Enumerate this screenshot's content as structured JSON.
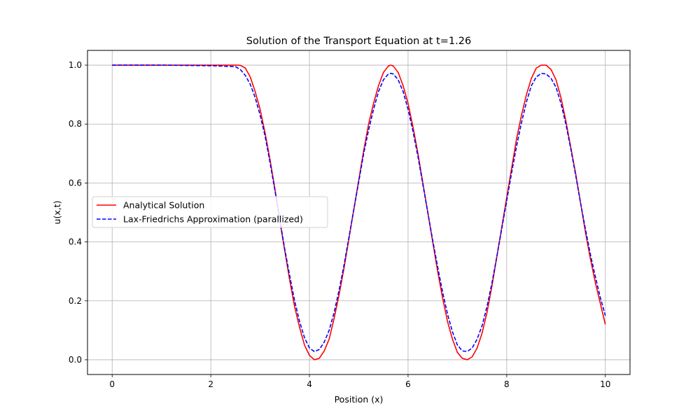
{
  "chart_data": {
    "type": "line",
    "title": "Solution of the Transport Equation at t=1.26",
    "xlabel": "Position (x)",
    "ylabel": "u(x,t)",
    "xlim": [
      -0.5,
      10.5
    ],
    "ylim": [
      -0.05,
      1.05
    ],
    "xticks": [
      0,
      2,
      4,
      6,
      8,
      10
    ],
    "yticks": [
      0.0,
      0.2,
      0.4,
      0.6,
      0.8,
      1.0
    ],
    "xtick_labels": [
      "0",
      "2",
      "4",
      "6",
      "8",
      "10"
    ],
    "ytick_labels": [
      "0.0",
      "0.2",
      "0.4",
      "0.6",
      "0.8",
      "1.0"
    ],
    "grid": true,
    "legend_position": "center-left",
    "x": [
      0,
      0.5,
      1,
      1.5,
      2,
      2.5,
      2.55,
      2.6,
      2.7,
      2.8,
      2.9,
      3.0,
      3.1,
      3.2,
      3.3,
      3.4,
      3.5,
      3.6,
      3.7,
      3.8,
      3.9,
      4.0,
      4.1,
      4.2,
      4.3,
      4.4,
      4.5,
      4.6,
      4.7,
      4.8,
      4.9,
      5.0,
      5.1,
      5.2,
      5.3,
      5.4,
      5.5,
      5.6,
      5.65,
      5.7,
      5.8,
      5.9,
      6.0,
      6.1,
      6.2,
      6.3,
      6.4,
      6.5,
      6.6,
      6.7,
      6.8,
      6.9,
      7.0,
      7.1,
      7.2,
      7.3,
      7.4,
      7.5,
      7.6,
      7.7,
      7.8,
      7.9,
      8.0,
      8.1,
      8.2,
      8.3,
      8.4,
      8.5,
      8.6,
      8.7,
      8.8,
      8.9,
      9.0,
      9.1,
      9.2,
      9.3,
      9.4,
      9.5,
      9.6,
      9.7,
      9.8,
      9.9,
      10.0
    ],
    "series": [
      {
        "name": "Analytical Solution",
        "color": "#ff0000",
        "style": "solid",
        "values": [
          1,
          1,
          1,
          1,
          1,
          1,
          1,
          0.999,
          0.99,
          0.96,
          0.91,
          0.85,
          0.77,
          0.68,
          0.58,
          0.47,
          0.37,
          0.27,
          0.18,
          0.11,
          0.05,
          0.015,
          0.0,
          0.005,
          0.03,
          0.07,
          0.14,
          0.22,
          0.31,
          0.41,
          0.51,
          0.61,
          0.71,
          0.8,
          0.87,
          0.93,
          0.975,
          0.997,
          1.0,
          0.997,
          0.975,
          0.93,
          0.87,
          0.79,
          0.7,
          0.6,
          0.5,
          0.4,
          0.3,
          0.21,
          0.13,
          0.07,
          0.025,
          0.005,
          0.0,
          0.01,
          0.04,
          0.09,
          0.16,
          0.25,
          0.35,
          0.45,
          0.55,
          0.65,
          0.75,
          0.83,
          0.9,
          0.955,
          0.99,
          1.0,
          1.0,
          0.985,
          0.95,
          0.89,
          0.81,
          0.72,
          0.63,
          0.53,
          0.43,
          0.34,
          0.26,
          0.19,
          0.12
        ]
      },
      {
        "name": "Lax-Friedrichs Approximation (parallized)",
        "color": "#0000ff",
        "style": "dashed",
        "values": [
          1,
          1,
          1,
          0.999,
          0.998,
          0.995,
          0.99,
          0.985,
          0.965,
          0.935,
          0.89,
          0.83,
          0.76,
          0.67,
          0.575,
          0.475,
          0.375,
          0.285,
          0.2,
          0.13,
          0.075,
          0.04,
          0.028,
          0.035,
          0.06,
          0.1,
          0.16,
          0.235,
          0.32,
          0.415,
          0.51,
          0.605,
          0.7,
          0.78,
          0.85,
          0.91,
          0.95,
          0.97,
          0.972,
          0.97,
          0.95,
          0.91,
          0.85,
          0.775,
          0.69,
          0.595,
          0.5,
          0.405,
          0.315,
          0.23,
          0.155,
          0.095,
          0.05,
          0.03,
          0.028,
          0.04,
          0.07,
          0.115,
          0.18,
          0.26,
          0.35,
          0.445,
          0.54,
          0.635,
          0.725,
          0.805,
          0.875,
          0.93,
          0.96,
          0.972,
          0.97,
          0.955,
          0.925,
          0.87,
          0.8,
          0.715,
          0.625,
          0.53,
          0.44,
          0.355,
          0.28,
          0.21,
          0.15
        ]
      }
    ]
  }
}
